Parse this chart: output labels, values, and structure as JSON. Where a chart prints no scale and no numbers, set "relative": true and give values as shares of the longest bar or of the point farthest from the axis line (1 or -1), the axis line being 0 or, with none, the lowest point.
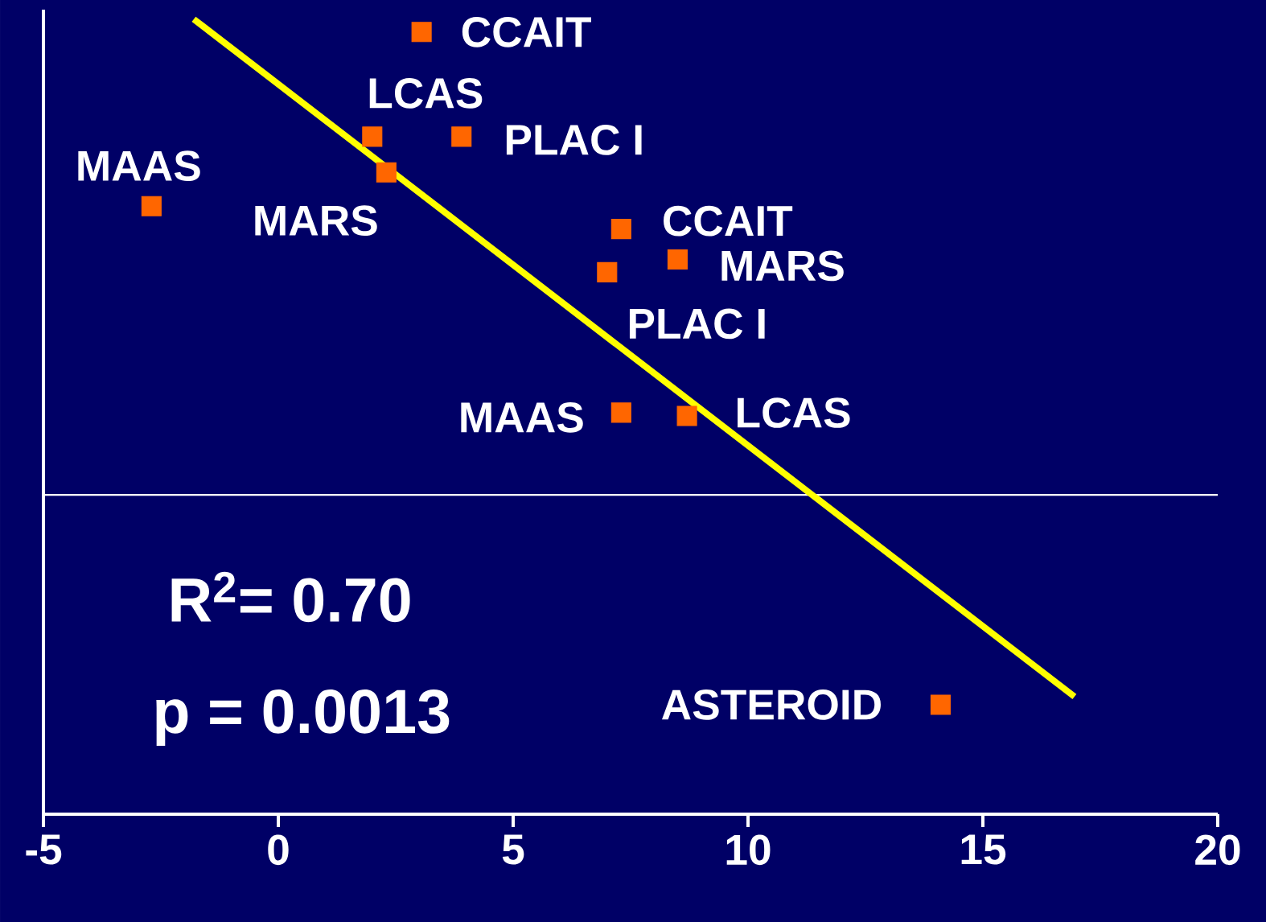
{
  "chart_data": {
    "type": "scatter",
    "relative": true,
    "marker": "square",
    "xlim": [
      -5,
      20
    ],
    "xticks": [
      -5,
      0,
      5,
      10,
      15,
      20
    ],
    "series": [
      {
        "color": "#ff6600",
        "x": [
          3.05,
          2.0,
          3.9,
          2.3,
          -2.7
        ],
        "values": [
          0.973,
          0.753,
          0.753,
          0.678,
          0.607
        ]
      },
      {
        "color": "#ff6600",
        "x": [
          7.3,
          8.5,
          7.0,
          7.3,
          8.7,
          14.1
        ],
        "values": [
          0.559,
          0.495,
          0.468,
          0.173,
          0.166,
          -0.441
        ]
      },
      {
        "type": "line",
        "color": "#ffff00",
        "marker": "none",
        "x": [
          -1.8,
          16.95
        ],
        "values": [
          1.0,
          -0.424
        ]
      }
    ],
    "annotations": [
      {
        "text": "CCAIT",
        "x": 3.05,
        "y": 0.973
      },
      {
        "text": "LCAS",
        "x": 2.0,
        "y": 0.753
      },
      {
        "text": "PLAC I",
        "x": 3.9,
        "y": 0.753
      },
      {
        "text": "MAAS",
        "x": -2.7,
        "y": 0.607
      },
      {
        "text": "MARS",
        "x": 2.3,
        "y": 0.678
      },
      {
        "text": "CCAIT",
        "x": 7.3,
        "y": 0.559
      },
      {
        "text": "MARS",
        "x": 8.5,
        "y": 0.495
      },
      {
        "text": "PLAC I",
        "x": 7.0,
        "y": 0.468
      },
      {
        "text": "MAAS",
        "x": 7.3,
        "y": 0.173
      },
      {
        "text": "LCAS",
        "x": 8.7,
        "y": 0.166
      },
      {
        "text": "ASTEROID",
        "x": 14.1,
        "y": -0.441
      },
      "R$^{2}$= 0.70",
      "p = 0.0013"
    ]
  }
}
